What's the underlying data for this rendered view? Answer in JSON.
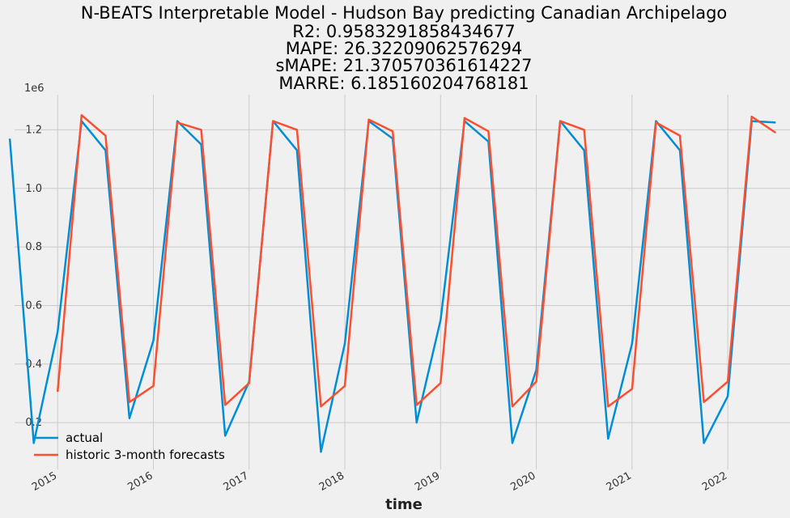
{
  "chart_data": {
    "type": "line",
    "title_lines": [
      "N-BEATS Interpretable Model - Hudson Bay predicting Canadian Archipelago",
      "R2: 0.9583291858434677",
      "MAPE: 26.32209062576294",
      "sMAPE: 21.370570361614227",
      "MARRE: 6.185160204768181"
    ],
    "xlabel": "time",
    "ylabel": "",
    "y_offset_label": "1e6",
    "x_ticks": [
      "2015",
      "2016",
      "2017",
      "2018",
      "2019",
      "2020",
      "2021",
      "2022"
    ],
    "y_ticks": [
      "0.2",
      "0.4",
      "0.6",
      "0.8",
      "1.0",
      "1.2"
    ],
    "y_tick_values": [
      0.2,
      0.4,
      0.6,
      0.8,
      1.0,
      1.2
    ],
    "xlim": [
      2014.55,
      2022.65
    ],
    "ylim": [
      0.04,
      1.32
    ],
    "grid": true,
    "legend_position": "lower-left",
    "series": [
      {
        "name": "actual",
        "color": "#008fd5",
        "x": [
          2014.5,
          2014.75,
          2015.0,
          2015.25,
          2015.5,
          2015.75,
          2016.0,
          2016.25,
          2016.5,
          2016.75,
          2017.0,
          2017.25,
          2017.5,
          2017.75,
          2018.0,
          2018.25,
          2018.5,
          2018.75,
          2019.0,
          2019.25,
          2019.5,
          2019.75,
          2020.0,
          2020.25,
          2020.5,
          2020.75,
          2021.0,
          2021.25,
          2021.5,
          2021.75,
          2022.0,
          2022.25,
          2022.5
        ],
        "y": [
          1.17,
          0.13,
          0.51,
          1.23,
          1.13,
          0.215,
          0.48,
          1.23,
          1.15,
          0.155,
          0.34,
          1.23,
          1.13,
          0.1,
          0.47,
          1.23,
          1.17,
          0.2,
          0.55,
          1.23,
          1.16,
          0.13,
          0.38,
          1.23,
          1.13,
          0.145,
          0.47,
          1.23,
          1.13,
          0.13,
          0.29,
          1.23,
          1.225
        ]
      },
      {
        "name": "historic 3-month forecasts",
        "color": "#fc4f30",
        "x": [
          2015.0,
          2015.25,
          2015.5,
          2015.75,
          2016.0,
          2016.25,
          2016.5,
          2016.75,
          2017.0,
          2017.25,
          2017.5,
          2017.75,
          2018.0,
          2018.25,
          2018.5,
          2018.75,
          2019.0,
          2019.25,
          2019.5,
          2019.75,
          2020.0,
          2020.25,
          2020.5,
          2020.75,
          2021.0,
          2021.25,
          2021.5,
          2021.75,
          2022.0,
          2022.25,
          2022.5
        ],
        "y": [
          0.305,
          1.25,
          1.18,
          0.27,
          0.325,
          1.225,
          1.2,
          0.26,
          0.335,
          1.23,
          1.2,
          0.255,
          0.325,
          1.235,
          1.195,
          0.26,
          0.335,
          1.24,
          1.195,
          0.255,
          0.34,
          1.23,
          1.2,
          0.255,
          0.315,
          1.225,
          1.18,
          0.27,
          0.34,
          1.245,
          1.19
        ]
      }
    ]
  }
}
